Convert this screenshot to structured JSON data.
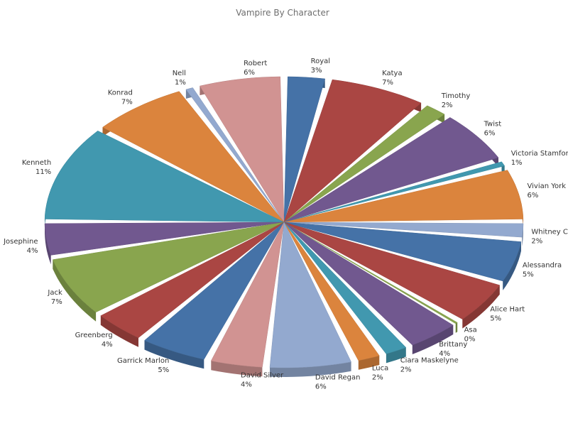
{
  "chart_data": {
    "type": "pie",
    "title": "Vampire By Character",
    "slices": [
      {
        "label": "Royal",
        "pct_label": "3%",
        "value": 3,
        "color": "#4572a7"
      },
      {
        "label": "Katya",
        "pct_label": "7%",
        "value": 7,
        "color": "#aa4643"
      },
      {
        "label": "Timothy",
        "pct_label": "2%",
        "value": 2,
        "color": "#89a54e"
      },
      {
        "label": "Twist",
        "pct_label": "6%",
        "value": 6,
        "color": "#71588f"
      },
      {
        "label": "Victoria Stamford",
        "pct_label": "1%",
        "value": 1,
        "color": "#4198af"
      },
      {
        "label": "Vivian York",
        "pct_label": "6%",
        "value": 6,
        "color": "#db843d"
      },
      {
        "label": "Whitney Co",
        "pct_label": "2%",
        "value": 2,
        "color": "#93a9cf"
      },
      {
        "label": "Alessandra",
        "pct_label": "5%",
        "value": 5,
        "color": "#4572a7"
      },
      {
        "label": "Alice Hart",
        "pct_label": "5%",
        "value": 5,
        "color": "#aa4643"
      },
      {
        "label": "Asa",
        "pct_label": "0%",
        "value": 0.4,
        "color": "#89a54e"
      },
      {
        "label": "Brittany",
        "pct_label": "4%",
        "value": 4,
        "color": "#71588f"
      },
      {
        "label": "Ciara Maskelyne",
        "pct_label": "2%",
        "value": 2,
        "color": "#4198af"
      },
      {
        "label": "Luca",
        "pct_label": "2%",
        "value": 2,
        "color": "#db843d"
      },
      {
        "label": "David Regan",
        "pct_label": "6%",
        "value": 6,
        "color": "#93a9cf"
      },
      {
        "label": "David Silver",
        "pct_label": "4%",
        "value": 4,
        "color": "#d19392"
      },
      {
        "label": "Garrick Marlon",
        "pct_label": "5%",
        "value": 5,
        "color": "#4572a7"
      },
      {
        "label": "Greenberg",
        "pct_label": "4%",
        "value": 4,
        "color": "#aa4643"
      },
      {
        "label": "Jack",
        "pct_label": "7%",
        "value": 7,
        "color": "#89a54e"
      },
      {
        "label": "Josephine",
        "pct_label": "4%",
        "value": 4,
        "color": "#71588f"
      },
      {
        "label": "Kenneth",
        "pct_label": "11%",
        "value": 11,
        "color": "#4198af"
      },
      {
        "label": "Konrad",
        "pct_label": "7%",
        "value": 7,
        "color": "#db843d"
      },
      {
        "label": "Nell",
        "pct_label": "1%",
        "value": 1,
        "color": "#93a9cf"
      },
      {
        "label": "Robert",
        "pct_label": "6%",
        "value": 6,
        "color": "#d19392"
      }
    ]
  }
}
